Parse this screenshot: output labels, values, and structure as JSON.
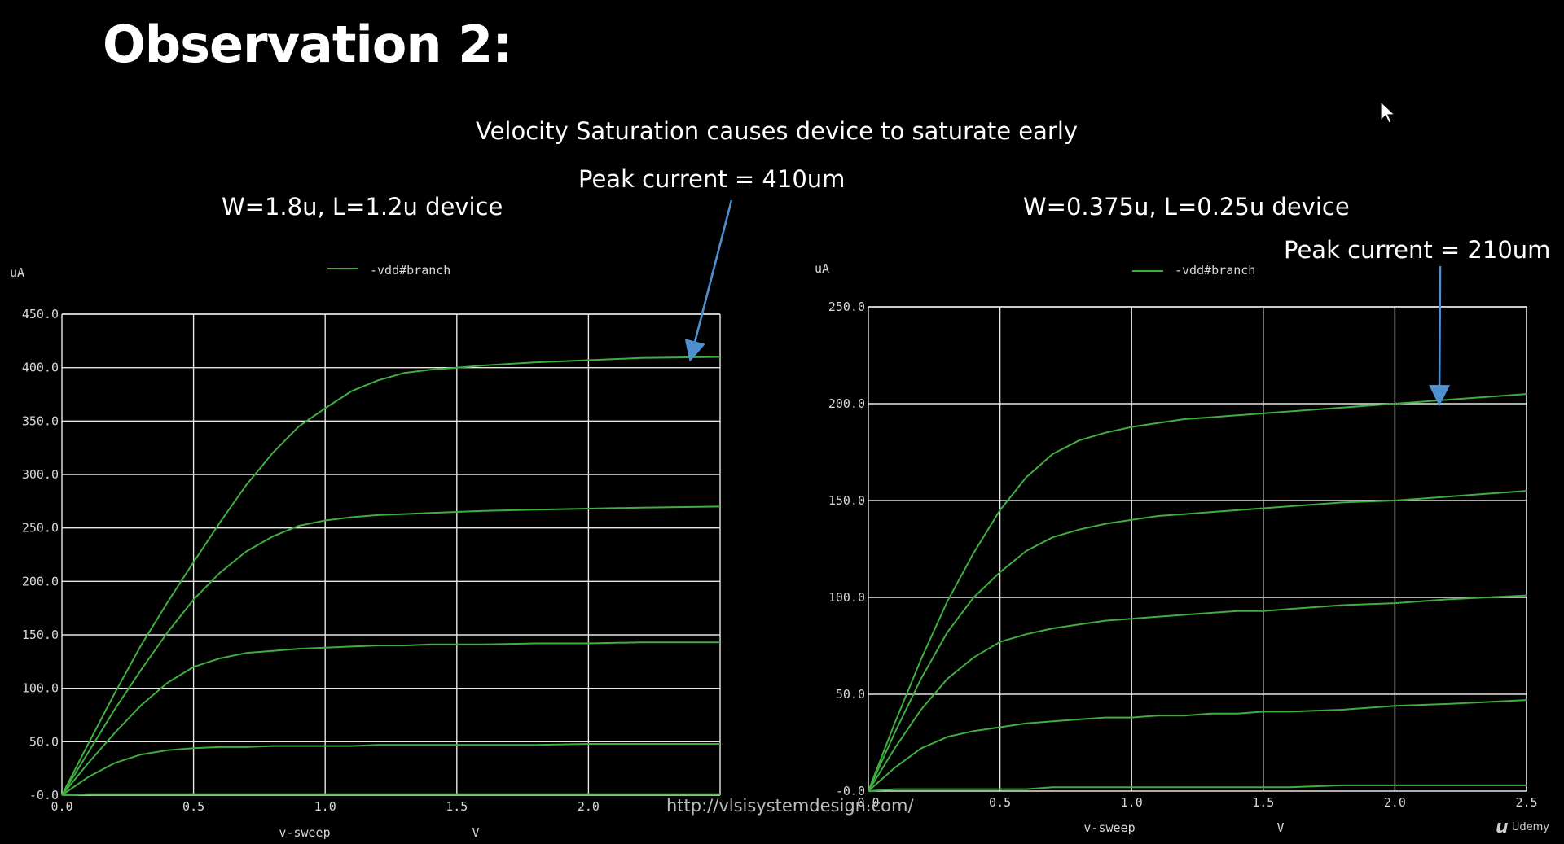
{
  "slide": {
    "title": "Observation 2:",
    "velocity_caption": "Velocity Saturation causes device to saturate early",
    "peak_left": "Peak current = 410um",
    "peak_right": "Peak current = 210um",
    "left_device_label": "W=1.8u, L=1.2u device",
    "right_device_label": "W=0.375u, L=0.25u device",
    "url_watermark": "http://vlsisystemdesign.com/",
    "logo_text": "Udemy",
    "logo_mark": "u"
  },
  "colors": {
    "background": "#000000",
    "grid": "#e6e6e6",
    "trace": "#3fae3f",
    "arrow": "#4f8fd0",
    "text": "#ffffff"
  },
  "icons": {
    "cursor": "mouse-pointer-icon"
  },
  "chart_data": [
    {
      "type": "line",
      "id": "left",
      "ylabel": "uA",
      "xlabel": "v-sweep",
      "xunit": "V",
      "legend": "-vdd#branch",
      "legend_position": "top-center",
      "grid": true,
      "xlim": [
        0.0,
        2.5
      ],
      "ylim": [
        0.0,
        450.0
      ],
      "x_ticks": [
        "0.0",
        "0.5",
        "1.0",
        "1.5",
        "2.0"
      ],
      "y_ticks": [
        "-0.0",
        "50.0",
        "100.0",
        "150.0",
        "200.0",
        "250.0",
        "300.0",
        "350.0",
        "400.0",
        "450.0"
      ],
      "x_tick_values": [
        0.0,
        0.5,
        1.0,
        1.5,
        2.0
      ],
      "y_tick_values": [
        0,
        50,
        100,
        150,
        200,
        250,
        300,
        350,
        400,
        450
      ],
      "x": [
        0.0,
        0.1,
        0.2,
        0.3,
        0.4,
        0.5,
        0.6,
        0.7,
        0.8,
        0.9,
        1.0,
        1.1,
        1.2,
        1.3,
        1.4,
        1.5,
        1.6,
        1.8,
        2.0,
        2.2,
        2.5
      ],
      "series": [
        {
          "values": [
            0,
            48,
            95,
            140,
            180,
            218,
            255,
            290,
            320,
            345,
            362,
            378,
            388,
            395,
            398,
            400,
            402,
            405,
            407,
            409,
            410
          ]
        },
        {
          "values": [
            0,
            40,
            80,
            117,
            152,
            183,
            208,
            228,
            242,
            252,
            257,
            260,
            262,
            263,
            264,
            265,
            266,
            267,
            268,
            269,
            270
          ]
        },
        {
          "values": [
            0,
            30,
            58,
            84,
            105,
            120,
            128,
            133,
            135,
            137,
            138,
            139,
            140,
            140,
            141,
            141,
            141,
            142,
            142,
            143,
            143
          ]
        },
        {
          "values": [
            0,
            17,
            30,
            38,
            42,
            44,
            45,
            45,
            46,
            46,
            46,
            46,
            47,
            47,
            47,
            47,
            47,
            47,
            48,
            48,
            48
          ]
        },
        {
          "values": [
            0,
            1,
            1,
            1,
            1,
            1,
            1,
            1,
            1,
            1,
            1,
            1,
            1,
            1,
            1,
            1,
            1,
            1,
            1,
            1,
            1
          ]
        }
      ]
    },
    {
      "type": "line",
      "id": "right",
      "ylabel": "uA",
      "xlabel": "v-sweep",
      "xunit": "V",
      "legend": "-vdd#branch",
      "legend_position": "top-center",
      "grid": true,
      "xlim": [
        0.0,
        2.5
      ],
      "ylim": [
        0.0,
        250.0
      ],
      "x_ticks": [
        "0.0",
        "0.5",
        "1.0",
        "1.5",
        "2.0",
        "2.5"
      ],
      "y_ticks": [
        "-0.0",
        "50.0",
        "100.0",
        "150.0",
        "200.0",
        "250.0"
      ],
      "x_tick_values": [
        0.0,
        0.5,
        1.0,
        1.5,
        2.0,
        2.5
      ],
      "y_tick_values": [
        0,
        50,
        100,
        150,
        200,
        250
      ],
      "x": [
        0.0,
        0.1,
        0.2,
        0.3,
        0.4,
        0.5,
        0.6,
        0.7,
        0.8,
        0.9,
        1.0,
        1.1,
        1.2,
        1.3,
        1.4,
        1.5,
        1.6,
        1.8,
        2.0,
        2.2,
        2.5
      ],
      "series": [
        {
          "values": [
            0,
            35,
            68,
            98,
            123,
            145,
            162,
            174,
            181,
            185,
            188,
            190,
            192,
            193,
            194,
            195,
            196,
            198,
            200,
            202,
            205
          ]
        },
        {
          "values": [
            0,
            30,
            58,
            82,
            100,
            113,
            124,
            131,
            135,
            138,
            140,
            142,
            143,
            144,
            145,
            146,
            147,
            149,
            150,
            152,
            155
          ]
        },
        {
          "values": [
            0,
            22,
            42,
            58,
            69,
            77,
            81,
            84,
            86,
            88,
            89,
            90,
            91,
            92,
            93,
            93,
            94,
            96,
            97,
            99,
            101
          ]
        },
        {
          "values": [
            0,
            12,
            22,
            28,
            31,
            33,
            35,
            36,
            37,
            38,
            38,
            39,
            39,
            40,
            40,
            41,
            41,
            42,
            44,
            45,
            47
          ]
        },
        {
          "values": [
            0,
            1,
            1,
            1,
            1,
            1,
            1,
            2,
            2,
            2,
            2,
            2,
            2,
            2,
            2,
            2,
            2,
            3,
            3,
            3,
            3
          ]
        }
      ]
    }
  ]
}
